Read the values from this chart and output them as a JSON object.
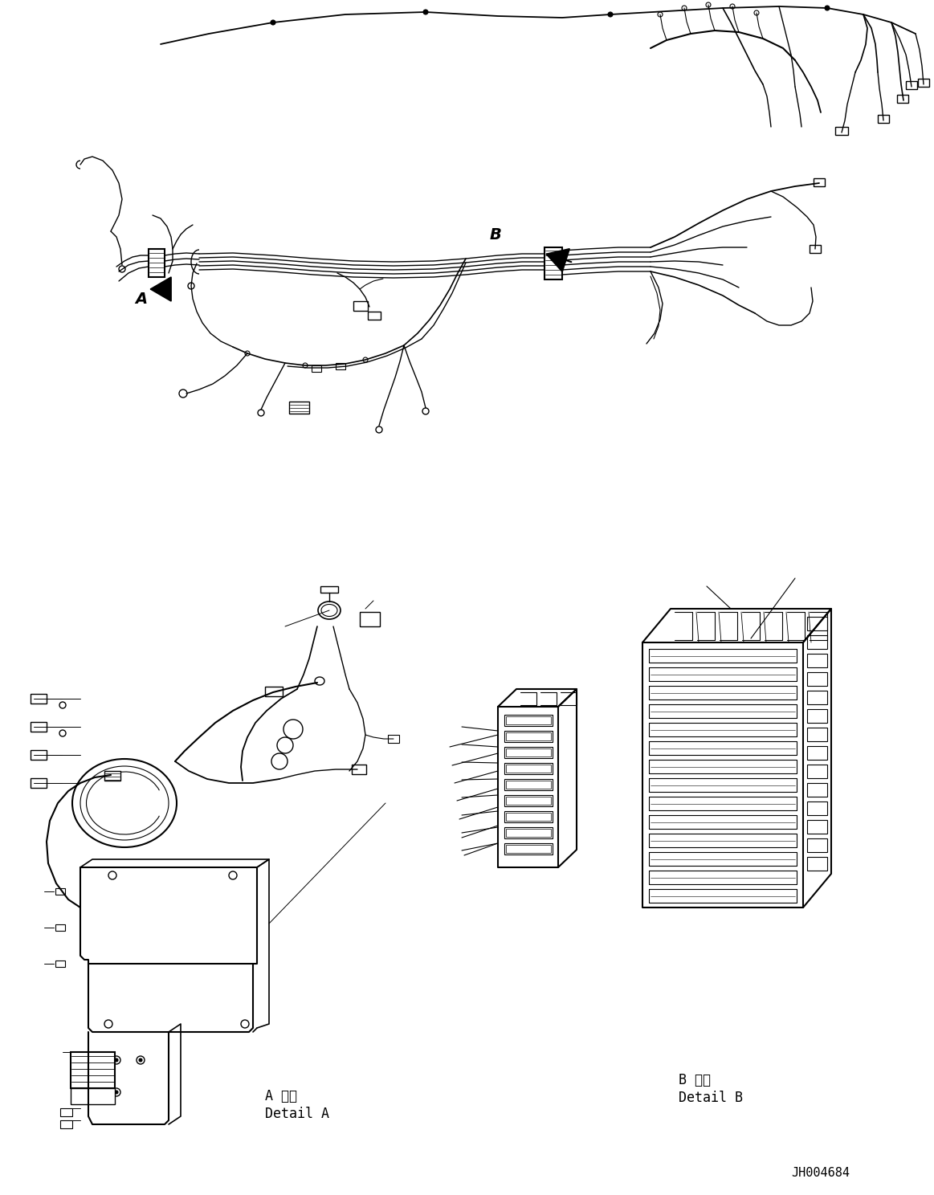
{
  "background_color": "#ffffff",
  "line_color": "#000000",
  "label_A": "A",
  "label_B": "B",
  "detail_A_japanese": "A 詳細",
  "detail_A_english": "Detail A",
  "detail_B_japanese": "B 詳細",
  "detail_B_english": "Detail B",
  "part_number": "JH004684",
  "fig_width": 11.63,
  "fig_height": 14.88,
  "dpi": 100
}
